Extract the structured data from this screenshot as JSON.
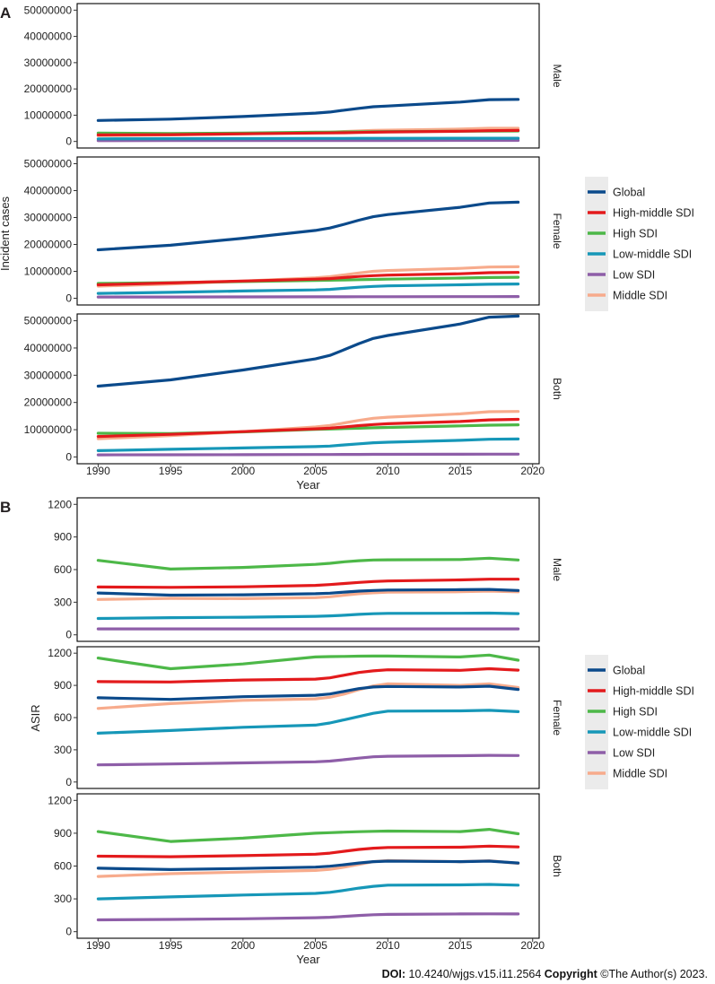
{
  "figure": {
    "panel_a_label": "A",
    "panel_b_label": "B"
  },
  "footer": {
    "doi_label": "DOI:",
    "doi_value": "10.4240/wjgs.v15.i11.2564",
    "copyright_label": "Copyright",
    "copyright_value": "©The Author(s) 2023."
  },
  "colors": {
    "Global": "#0b4a8b",
    "High-middle SDI": "#e31a1c",
    "High SDI": "#4db848",
    "Low-middle SDI": "#1697b8",
    "Low SDI": "#8e5ea8",
    "Middle SDI": "#f7ab8c"
  },
  "chart_data": [
    {
      "type": "line",
      "id": "A",
      "ylabel": "Incident cases",
      "xlabel": "Year",
      "xlim": [
        1990,
        2019
      ],
      "xticks": [
        1990,
        1995,
        2000,
        2005,
        2010,
        2015,
        2020
      ],
      "ylim": [
        0,
        50000000
      ],
      "yticks": [
        0,
        10000000,
        20000000,
        30000000,
        40000000,
        50000000
      ],
      "facets": [
        "Male",
        "Female",
        "Both"
      ],
      "legend": {
        "placement": "right",
        "entries": [
          "Global",
          "High-middle SDI",
          "High SDI",
          "Low-middle SDI",
          "Low SDI",
          "Middle SDI"
        ]
      },
      "x": [
        1990,
        1995,
        2000,
        2005,
        2006,
        2007,
        2008,
        2009,
        2010,
        2015,
        2017,
        2019
      ],
      "series": {
        "Male": [
          {
            "name": "Global",
            "values": [
              8000000,
              8500000,
              9500000,
              10800000,
              11200000,
              11900000,
              12600000,
              13200000,
              13500000,
              15000000,
              15900000,
              16000000
            ]
          },
          {
            "name": "High-middle SDI",
            "values": [
              2500000,
              2600000,
              2900000,
              3200000,
              3250000,
              3300000,
              3400000,
              3500000,
              3600000,
              3900000,
              4100000,
              4200000
            ]
          },
          {
            "name": "High SDI",
            "values": [
              3200000,
              3000000,
              3200000,
              3500000,
              3550000,
              3600000,
              3650000,
              3700000,
              3750000,
              3900000,
              3950000,
              4000000
            ]
          },
          {
            "name": "Low-middle SDI",
            "values": [
              1000000,
              1050000,
              1100000,
              1150000,
              1160000,
              1170000,
              1180000,
              1190000,
              1200000,
              1220000,
              1230000,
              1240000
            ]
          },
          {
            "name": "Low SDI",
            "values": [
              300000,
              320000,
              340000,
              360000,
              365000,
              370000,
              375000,
              380000,
              385000,
              400000,
              410000,
              420000
            ]
          },
          {
            "name": "Middle SDI",
            "values": [
              2200000,
              2500000,
              2900000,
              3400000,
              3550000,
              3800000,
              4000000,
              4200000,
              4300000,
              4700000,
              5000000,
              5000000
            ]
          }
        ],
        "Female": [
          {
            "name": "Global",
            "values": [
              18000000,
              19700000,
              22300000,
              25200000,
              26100000,
              27500000,
              29000000,
              30300000,
              31100000,
              33800000,
              35400000,
              35700000
            ]
          },
          {
            "name": "High-middle SDI",
            "values": [
              5000000,
              5700000,
              6400000,
              7100000,
              7300000,
              7700000,
              8100000,
              8400000,
              8600000,
              9100000,
              9500000,
              9600000
            ]
          },
          {
            "name": "High SDI",
            "values": [
              5500000,
              5800000,
              6200000,
              6600000,
              6700000,
              6800000,
              6900000,
              7000000,
              7100000,
              7500000,
              7700000,
              7800000
            ]
          },
          {
            "name": "Low-middle SDI",
            "values": [
              1800000,
              2200000,
              2700000,
              3100000,
              3300000,
              3700000,
              4100000,
              4400000,
              4600000,
              5000000,
              5200000,
              5300000
            ]
          },
          {
            "name": "Low SDI",
            "values": [
              450000,
              470000,
              500000,
              530000,
              540000,
              550000,
              560000,
              570000,
              580000,
              600000,
              610000,
              620000
            ]
          },
          {
            "name": "Middle SDI",
            "values": [
              4500000,
              5300000,
              6400000,
              7600000,
              8000000,
              8700000,
              9400000,
              10000000,
              10300000,
              11100000,
              11600000,
              11700000
            ]
          }
        ],
        "Both": [
          {
            "name": "Global",
            "values": [
              26000000,
              28300000,
              31900000,
              36000000,
              37300000,
              39400000,
              41600000,
              43500000,
              44600000,
              48800000,
              51300000,
              51700000
            ]
          },
          {
            "name": "High-middle SDI",
            "values": [
              7500000,
              8300000,
              9300000,
              10300000,
              10550000,
              11000000,
              11500000,
              11900000,
              12200000,
              13000000,
              13600000,
              13800000
            ]
          },
          {
            "name": "High SDI",
            "values": [
              8700000,
              8600000,
              9200000,
              10100000,
              10250000,
              10400000,
              10550000,
              10700000,
              10850000,
              11400000,
              11650000,
              11800000
            ]
          },
          {
            "name": "Low-middle SDI",
            "values": [
              2300000,
              2800000,
              3300000,
              3800000,
              4000000,
              4400000,
              4800000,
              5200000,
              5400000,
              6100000,
              6500000,
              6600000
            ]
          },
          {
            "name": "Low SDI",
            "values": [
              750000,
              790000,
              840000,
              890000,
              905000,
              920000,
              935000,
              950000,
              965000,
              1000000,
              1020000,
              1040000
            ]
          },
          {
            "name": "Middle SDI",
            "values": [
              6700000,
              7800000,
              9300000,
              11000000,
              11550000,
              12500000,
              13400000,
              14200000,
              14600000,
              15800000,
              16600000,
              16700000
            ]
          }
        ]
      }
    },
    {
      "type": "line",
      "id": "B",
      "ylabel": "ASIR",
      "xlabel": "Year",
      "xlim": [
        1990,
        2019
      ],
      "xticks": [
        1990,
        1995,
        2000,
        2005,
        2010,
        2015,
        2020
      ],
      "ylim": [
        0,
        1200
      ],
      "yticks": [
        0,
        300,
        600,
        900,
        1200
      ],
      "facets": [
        "Male",
        "Female",
        "Both"
      ],
      "legend": {
        "placement": "right",
        "entries": [
          "Global",
          "High-middle SDI",
          "High SDI",
          "Low-middle SDI",
          "Low SDI",
          "Middle SDI"
        ]
      },
      "x": [
        1990,
        1995,
        2000,
        2005,
        2006,
        2007,
        2008,
        2009,
        2010,
        2015,
        2017,
        2019
      ],
      "series": {
        "Male": [
          {
            "name": "Global",
            "values": [
              385,
              365,
              368,
              378,
              383,
              393,
              402,
              408,
              412,
              415,
              418,
              408
            ]
          },
          {
            "name": "High-middle SDI",
            "values": [
              440,
              437,
              442,
              455,
              462,
              472,
              482,
              490,
              495,
              505,
              512,
              512
            ]
          },
          {
            "name": "High SDI",
            "values": [
              685,
              605,
              620,
              648,
              658,
              672,
              682,
              688,
              690,
              692,
              705,
              688
            ]
          },
          {
            "name": "Low-middle SDI",
            "values": [
              150,
              158,
              162,
              170,
              174,
              180,
              188,
              194,
              197,
              198,
              200,
              195
            ]
          },
          {
            "name": "Low SDI",
            "values": [
              55,
              55,
              55,
              55,
              55,
              55,
              55,
              55,
              55,
              55,
              55,
              55
            ]
          },
          {
            "name": "Middle SDI",
            "values": [
              325,
              335,
              333,
              342,
              350,
              365,
              378,
              386,
              392,
              396,
              402,
              395
            ]
          }
        ],
        "Female": [
          {
            "name": "Global",
            "values": [
              785,
              770,
              795,
              808,
              820,
              845,
              870,
              885,
              890,
              885,
              892,
              862
            ]
          },
          {
            "name": "High-middle SDI",
            "values": [
              935,
              932,
              950,
              958,
              970,
              995,
              1020,
              1035,
              1045,
              1040,
              1055,
              1042
            ]
          },
          {
            "name": "High SDI",
            "values": [
              1155,
              1055,
              1100,
              1165,
              1168,
              1170,
              1172,
              1173,
              1173,
              1165,
              1182,
              1135
            ]
          },
          {
            "name": "Low-middle SDI",
            "values": [
              455,
              480,
              510,
              530,
              550,
              580,
              610,
              640,
              660,
              663,
              668,
              655
            ]
          },
          {
            "name": "Low SDI",
            "values": [
              160,
              168,
              178,
              188,
              195,
              208,
              222,
              235,
              240,
              245,
              248,
              247
            ]
          },
          {
            "name": "Middle SDI",
            "values": [
              685,
              730,
              760,
              775,
              790,
              820,
              860,
              895,
              915,
              900,
              915,
              880
            ]
          }
        ],
        "Both": [
          {
            "name": "Global",
            "values": [
              580,
              568,
              578,
              590,
              598,
              612,
              628,
              640,
              645,
              640,
              645,
              628
            ]
          },
          {
            "name": "High-middle SDI",
            "values": [
              690,
              685,
              695,
              708,
              718,
              735,
              752,
              763,
              770,
              772,
              782,
              775
            ]
          },
          {
            "name": "High SDI",
            "values": [
              915,
              825,
              855,
              900,
              905,
              910,
              914,
              917,
              920,
              915,
              935,
              895
            ]
          },
          {
            "name": "Low-middle SDI",
            "values": [
              300,
              318,
              335,
              350,
              360,
              378,
              398,
              415,
              425,
              428,
              432,
              425
            ]
          },
          {
            "name": "Low SDI",
            "values": [
              108,
              112,
              118,
              128,
              132,
              140,
              148,
              155,
              158,
              162,
              163,
              162
            ]
          },
          {
            "name": "Middle SDI",
            "values": [
              505,
              530,
              545,
              560,
              570,
              590,
              615,
              640,
              650,
              640,
              648,
              625
            ]
          }
        ]
      }
    }
  ]
}
